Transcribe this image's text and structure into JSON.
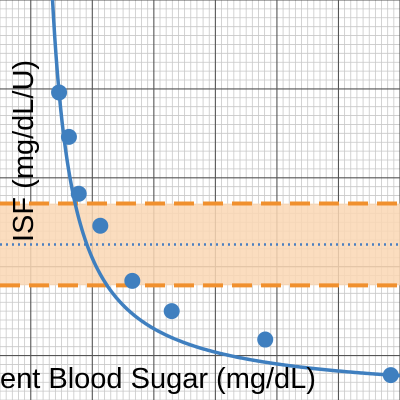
{
  "chart_data": {
    "type": "line",
    "title": "",
    "xlabel": "ent Blood Sugar (mg/dL)",
    "ylabel": "ISF (mg/dL/U)",
    "grid": true,
    "legend": "none",
    "series": [
      {
        "color": "#3f7fbf",
        "points": [
          {
            "x": 0.46,
            "y": 39.6
          },
          {
            "x": 0.62,
            "y": 34.6
          },
          {
            "x": 0.78,
            "y": 28.2
          },
          {
            "x": 1.13,
            "y": 24.6
          },
          {
            "x": 1.65,
            "y": 18.4
          },
          {
            "x": 2.29,
            "y": 15.0
          },
          {
            "x": 3.81,
            "y": 11.8
          },
          {
            "x": 5.85,
            "y": 7.8
          }
        ]
      }
    ],
    "reference_band": {
      "center": 22.5,
      "lower": 17.9,
      "upper": 27.1,
      "line_color": "#f0902e",
      "fill_color": "#fad7b4",
      "center_color": "#4a7fc0"
    }
  }
}
